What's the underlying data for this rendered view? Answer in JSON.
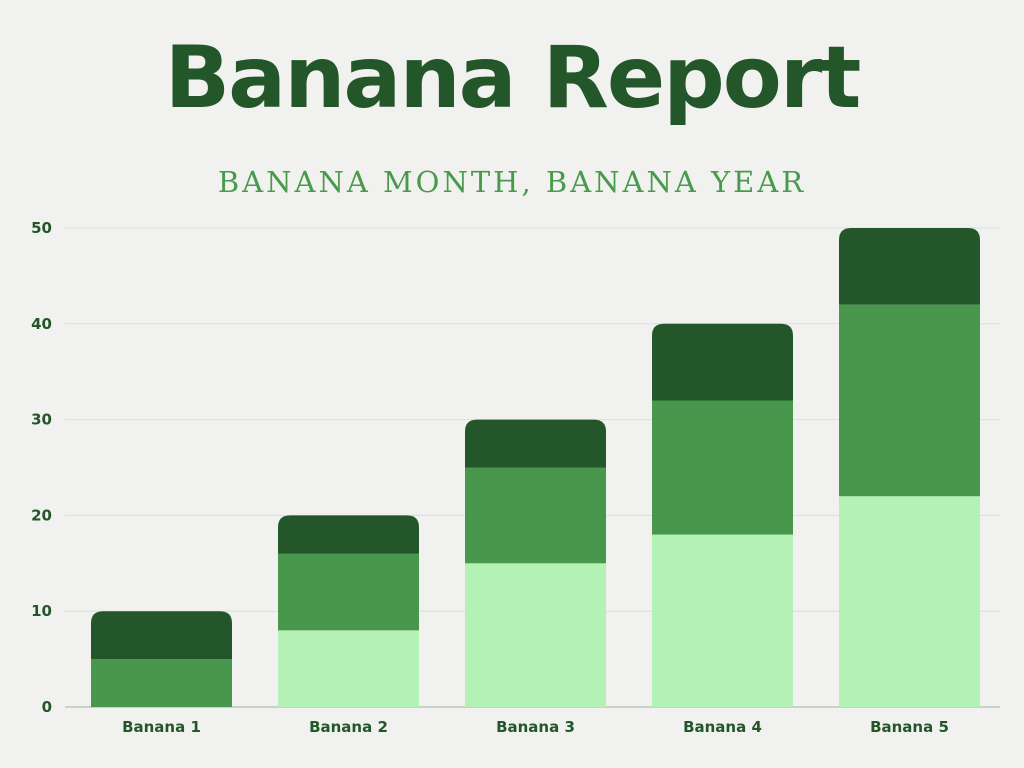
{
  "title": "Banana Report",
  "subtitle": "BANANA MONTH, BANANA YEAR",
  "colors": {
    "background": "#f1f1ef",
    "title": "#23572a",
    "subtitle": "#4a9a4e",
    "axis_text": "#23572a",
    "grid": "#dcdedb",
    "series": [
      "#b4f1b4",
      "#48974c",
      "#23572a"
    ]
  },
  "chart_data": {
    "type": "bar",
    "stacked": true,
    "categories": [
      "Banana 1",
      "Banana 2",
      "Banana 3",
      "Banana 4",
      "Banana 5"
    ],
    "series": [
      {
        "values": [
          0,
          8,
          15,
          18,
          22
        ]
      },
      {
        "values": [
          5,
          8,
          10,
          14,
          20
        ]
      },
      {
        "values": [
          5,
          4,
          5,
          8,
          8
        ]
      }
    ],
    "y_ticks": [
      0,
      10,
      20,
      30,
      40,
      50
    ],
    "ylim": [
      0,
      50
    ],
    "xlabel": "",
    "ylabel": "",
    "grid": true,
    "legend": "none"
  }
}
